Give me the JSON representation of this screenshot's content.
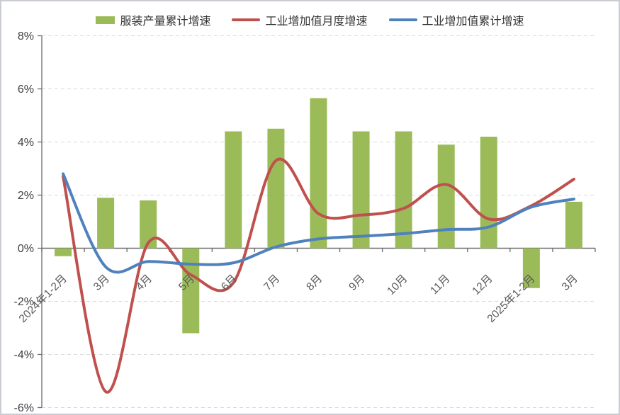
{
  "chart_data": {
    "type": "combo",
    "title": "",
    "categories": [
      "2024年1-2月",
      "3月",
      "4月",
      "5月",
      "6月",
      "7月",
      "8月",
      "9月",
      "10月",
      "11月",
      "12月",
      "2025年1-2月",
      "3月"
    ],
    "series": [
      {
        "name": "服装产量累计增速",
        "chart_type": "bar",
        "color": "#9BBB59",
        "values": [
          -0.3,
          1.9,
          1.8,
          -3.2,
          4.4,
          4.5,
          5.65,
          4.4,
          4.4,
          3.9,
          4.2,
          -1.5,
          1.75
        ]
      },
      {
        "name": "工业增加值月度增速",
        "chart_type": "line",
        "smooth": true,
        "color": "#C0504D",
        "values": [
          2.7,
          -5.4,
          0.2,
          -1.0,
          -1.3,
          3.3,
          1.3,
          1.25,
          1.5,
          2.4,
          1.1,
          1.6,
          2.6
        ]
      },
      {
        "name": "工业增加值累计增速",
        "chart_type": "line",
        "smooth": true,
        "color": "#4F81BD",
        "values": [
          2.8,
          -0.7,
          -0.5,
          -0.6,
          -0.55,
          0.05,
          0.35,
          0.45,
          0.55,
          0.7,
          0.8,
          1.55,
          1.85
        ]
      }
    ],
    "xlabel": "",
    "ylabel": "",
    "ylim": [
      -6,
      8
    ],
    "ytick_step": 2,
    "ytick_labels": [
      "8%",
      "6%",
      "4%",
      "2%",
      "0%",
      "-2%",
      "-4%",
      "-6%"
    ],
    "grid": "horizontal-dashed",
    "legend_position": "top"
  },
  "legend": {
    "items": [
      {
        "label": "服装产量累计增速",
        "swatch": "rect",
        "color": "#9BBB59"
      },
      {
        "label": "工业增加值月度增速",
        "swatch": "line",
        "color": "#C0504D"
      },
      {
        "label": "工业增加值累计增速",
        "swatch": "line",
        "color": "#4F81BD"
      }
    ]
  },
  "colors": {
    "bar": "#9BBB59",
    "monthly_line": "#C0504D",
    "cumulative_line": "#4F81BD",
    "gridline": "#D9D9D9",
    "axis": "#6B6B6B",
    "y_label": "#404040",
    "x_label": "#595959",
    "background": "#FFFFFF"
  }
}
